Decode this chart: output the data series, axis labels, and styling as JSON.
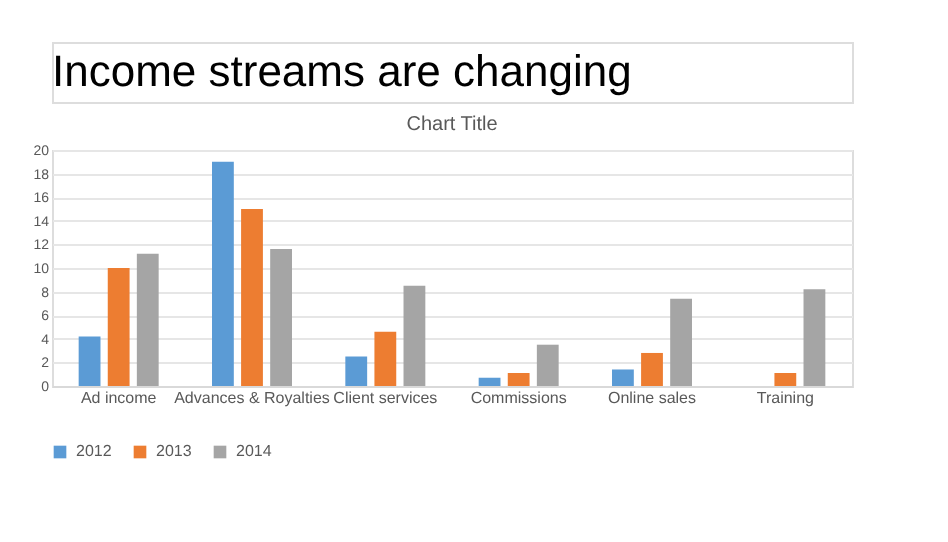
{
  "chart_data": {
    "type": "bar",
    "title": "Income streams are changing",
    "subtitle": "Chart Title",
    "categories": [
      "Ad income",
      "Advances & Royalties",
      "Client services",
      "Commissions",
      "Online sales",
      "Training"
    ],
    "series": [
      {
        "name": "2012",
        "color": "#5b9bd5",
        "values": [
          4.2,
          19,
          2.5,
          0.7,
          1.4,
          null
        ]
      },
      {
        "name": "2013",
        "color": "#ed7d31",
        "values": [
          10,
          15,
          4.6,
          1.1,
          2.8,
          1.1
        ]
      },
      {
        "name": "2014",
        "color": "#a5a5a5",
        "values": [
          11.2,
          11.6,
          8.5,
          3.5,
          7.4,
          8.2
        ]
      }
    ],
    "ylim": [
      0,
      20
    ],
    "yticks": [
      0,
      2,
      4,
      6,
      8,
      10,
      12,
      14,
      16,
      18,
      20
    ],
    "grid": "y",
    "legend": "bottom"
  }
}
